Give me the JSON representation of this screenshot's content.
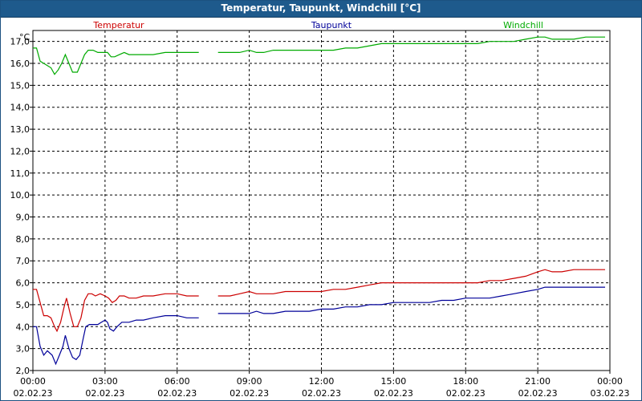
{
  "window": {
    "title": "Temperatur, Taupunkt, Windchill [°C]"
  },
  "chart_data": {
    "type": "line",
    "title": "Temperatur, Taupunkt, Windchill [°C]",
    "ylabel": "°C",
    "xlabel": "",
    "ylim": [
      2.0,
      17.5
    ],
    "xlim_hours": [
      0,
      24
    ],
    "grid": true,
    "legend": "top",
    "y_ticks": [
      "2,0",
      "3,0",
      "4,0",
      "5,0",
      "6,0",
      "7,0",
      "8,0",
      "9,0",
      "10,0",
      "11,0",
      "12,0",
      "13,0",
      "14,0",
      "15,0",
      "16,0",
      "17,0"
    ],
    "x_ticks": [
      {
        "time": "00:00",
        "date": "02.02.23"
      },
      {
        "time": "03:00",
        "date": "02.02.23"
      },
      {
        "time": "06:00",
        "date": "02.02.23"
      },
      {
        "time": "09:00",
        "date": "02.02.23"
      },
      {
        "time": "12:00",
        "date": "02.02.23"
      },
      {
        "time": "15:00",
        "date": "02.02.23"
      },
      {
        "time": "18:00",
        "date": "02.02.23"
      },
      {
        "time": "21:00",
        "date": "02.02.23"
      },
      {
        "time": "00:00",
        "date": "03.02.23"
      }
    ],
    "series": [
      {
        "name": "Temperatur",
        "color": "#cc0000",
        "segments": [
          [
            [
              0,
              5.7
            ],
            [
              0.15,
              5.7
            ],
            [
              0.3,
              5.1
            ],
            [
              0.45,
              4.5
            ],
            [
              0.6,
              4.5
            ],
            [
              0.75,
              4.4
            ],
            [
              0.9,
              4.0
            ],
            [
              1.0,
              3.8
            ],
            [
              1.15,
              4.2
            ],
            [
              1.3,
              4.9
            ],
            [
              1.4,
              5.3
            ],
            [
              1.55,
              4.6
            ],
            [
              1.7,
              4.0
            ],
            [
              1.85,
              4.0
            ],
            [
              2.0,
              4.4
            ],
            [
              2.15,
              5.2
            ],
            [
              2.3,
              5.5
            ],
            [
              2.45,
              5.5
            ],
            [
              2.6,
              5.4
            ],
            [
              2.8,
              5.5
            ],
            [
              3.0,
              5.4
            ],
            [
              3.15,
              5.3
            ],
            [
              3.3,
              5.1
            ],
            [
              3.45,
              5.2
            ],
            [
              3.6,
              5.4
            ],
            [
              3.8,
              5.4
            ],
            [
              4.0,
              5.3
            ],
            [
              4.3,
              5.3
            ],
            [
              4.6,
              5.4
            ],
            [
              5.0,
              5.4
            ],
            [
              5.5,
              5.5
            ],
            [
              6.0,
              5.5
            ],
            [
              6.4,
              5.4
            ],
            [
              6.9,
              5.4
            ]
          ],
          [
            [
              7.7,
              5.4
            ],
            [
              8.2,
              5.4
            ],
            [
              8.6,
              5.5
            ],
            [
              9.0,
              5.6
            ],
            [
              9.3,
              5.5
            ],
            [
              9.6,
              5.5
            ],
            [
              10.0,
              5.5
            ],
            [
              10.5,
              5.6
            ],
            [
              11.0,
              5.6
            ],
            [
              11.5,
              5.6
            ],
            [
              12.0,
              5.6
            ],
            [
              12.5,
              5.7
            ],
            [
              13.0,
              5.7
            ],
            [
              13.5,
              5.8
            ],
            [
              14.0,
              5.9
            ],
            [
              14.5,
              6.0
            ],
            [
              15.0,
              6.0
            ],
            [
              15.3,
              6.0
            ],
            [
              15.6,
              6.0
            ],
            [
              16.0,
              6.0
            ],
            [
              16.5,
              6.0
            ],
            [
              17.0,
              6.0
            ],
            [
              17.5,
              6.0
            ],
            [
              18.0,
              6.0
            ],
            [
              18.5,
              6.0
            ],
            [
              19.0,
              6.1
            ],
            [
              19.5,
              6.1
            ],
            [
              20.0,
              6.2
            ],
            [
              20.5,
              6.3
            ],
            [
              21.0,
              6.5
            ],
            [
              21.3,
              6.6
            ],
            [
              21.6,
              6.5
            ],
            [
              22.0,
              6.5
            ],
            [
              22.5,
              6.6
            ],
            [
              23.0,
              6.6
            ],
            [
              23.8,
              6.6
            ]
          ]
        ]
      },
      {
        "name": "Taupunkt",
        "color": "#000099",
        "segments": [
          [
            [
              0,
              4.0
            ],
            [
              0.15,
              4.0
            ],
            [
              0.3,
              3.1
            ],
            [
              0.45,
              2.7
            ],
            [
              0.6,
              2.9
            ],
            [
              0.8,
              2.7
            ],
            [
              0.95,
              2.3
            ],
            [
              1.1,
              2.7
            ],
            [
              1.25,
              3.1
            ],
            [
              1.35,
              3.6
            ],
            [
              1.5,
              3.0
            ],
            [
              1.65,
              2.6
            ],
            [
              1.8,
              2.5
            ],
            [
              1.95,
              2.7
            ],
            [
              2.1,
              3.5
            ],
            [
              2.2,
              4.0
            ],
            [
              2.35,
              4.1
            ],
            [
              2.5,
              4.1
            ],
            [
              2.7,
              4.1
            ],
            [
              2.85,
              4.2
            ],
            [
              3.0,
              4.3
            ],
            [
              3.1,
              4.2
            ],
            [
              3.2,
              3.9
            ],
            [
              3.35,
              3.8
            ],
            [
              3.5,
              4.0
            ],
            [
              3.7,
              4.2
            ],
            [
              4.0,
              4.2
            ],
            [
              4.3,
              4.3
            ],
            [
              4.6,
              4.3
            ],
            [
              5.0,
              4.4
            ],
            [
              5.5,
              4.5
            ],
            [
              6.0,
              4.5
            ],
            [
              6.4,
              4.4
            ],
            [
              6.9,
              4.4
            ]
          ],
          [
            [
              7.7,
              4.6
            ],
            [
              8.2,
              4.6
            ],
            [
              8.6,
              4.6
            ],
            [
              9.0,
              4.6
            ],
            [
              9.3,
              4.7
            ],
            [
              9.6,
              4.6
            ],
            [
              10.0,
              4.6
            ],
            [
              10.5,
              4.7
            ],
            [
              11.0,
              4.7
            ],
            [
              11.5,
              4.7
            ],
            [
              12.0,
              4.8
            ],
            [
              12.5,
              4.8
            ],
            [
              13.0,
              4.9
            ],
            [
              13.5,
              4.9
            ],
            [
              14.0,
              5.0
            ],
            [
              14.5,
              5.0
            ],
            [
              15.0,
              5.1
            ],
            [
              15.5,
              5.1
            ],
            [
              16.0,
              5.1
            ],
            [
              16.5,
              5.1
            ],
            [
              17.0,
              5.2
            ],
            [
              17.5,
              5.2
            ],
            [
              18.0,
              5.3
            ],
            [
              18.5,
              5.3
            ],
            [
              19.0,
              5.3
            ],
            [
              19.5,
              5.4
            ],
            [
              20.0,
              5.5
            ],
            [
              20.5,
              5.6
            ],
            [
              21.0,
              5.7
            ],
            [
              21.3,
              5.8
            ],
            [
              21.6,
              5.8
            ],
            [
              22.0,
              5.8
            ],
            [
              22.5,
              5.8
            ],
            [
              23.0,
              5.8
            ],
            [
              23.8,
              5.8
            ]
          ]
        ]
      },
      {
        "name": "Windchill",
        "color": "#00aa00",
        "segments": [
          [
            [
              0,
              16.7
            ],
            [
              0.15,
              16.7
            ],
            [
              0.3,
              16.1
            ],
            [
              0.45,
              16.0
            ],
            [
              0.6,
              15.9
            ],
            [
              0.75,
              15.8
            ],
            [
              0.9,
              15.5
            ],
            [
              1.05,
              15.7
            ],
            [
              1.2,
              16.0
            ],
            [
              1.35,
              16.4
            ],
            [
              1.5,
              16.0
            ],
            [
              1.65,
              15.6
            ],
            [
              1.85,
              15.6
            ],
            [
              2.0,
              16.0
            ],
            [
              2.15,
              16.4
            ],
            [
              2.3,
              16.6
            ],
            [
              2.5,
              16.6
            ],
            [
              2.7,
              16.5
            ],
            [
              2.9,
              16.5
            ],
            [
              3.1,
              16.5
            ],
            [
              3.25,
              16.3
            ],
            [
              3.4,
              16.3
            ],
            [
              3.6,
              16.4
            ],
            [
              3.8,
              16.5
            ],
            [
              4.0,
              16.4
            ],
            [
              4.3,
              16.4
            ],
            [
              4.6,
              16.4
            ],
            [
              5.0,
              16.4
            ],
            [
              5.5,
              16.5
            ],
            [
              6.0,
              16.5
            ],
            [
              6.4,
              16.5
            ],
            [
              6.9,
              16.5
            ]
          ],
          [
            [
              7.7,
              16.5
            ],
            [
              8.2,
              16.5
            ],
            [
              8.6,
              16.5
            ],
            [
              9.0,
              16.6
            ],
            [
              9.3,
              16.5
            ],
            [
              9.6,
              16.5
            ],
            [
              10.0,
              16.6
            ],
            [
              10.5,
              16.6
            ],
            [
              11.0,
              16.6
            ],
            [
              11.5,
              16.6
            ],
            [
              12.0,
              16.6
            ],
            [
              12.5,
              16.6
            ],
            [
              13.0,
              16.7
            ],
            [
              13.5,
              16.7
            ],
            [
              14.0,
              16.8
            ],
            [
              14.5,
              16.9
            ],
            [
              15.0,
              16.9
            ],
            [
              15.5,
              16.9
            ],
            [
              16.0,
              16.9
            ],
            [
              16.5,
              16.9
            ],
            [
              17.0,
              16.9
            ],
            [
              17.5,
              16.9
            ],
            [
              18.0,
              16.9
            ],
            [
              18.5,
              16.9
            ],
            [
              19.0,
              17.0
            ],
            [
              19.5,
              17.0
            ],
            [
              20.0,
              17.0
            ],
            [
              20.5,
              17.1
            ],
            [
              21.0,
              17.2
            ],
            [
              21.3,
              17.2
            ],
            [
              21.6,
              17.1
            ],
            [
              22.0,
              17.1
            ],
            [
              22.5,
              17.1
            ],
            [
              23.0,
              17.2
            ],
            [
              23.8,
              17.2
            ]
          ]
        ]
      }
    ]
  }
}
